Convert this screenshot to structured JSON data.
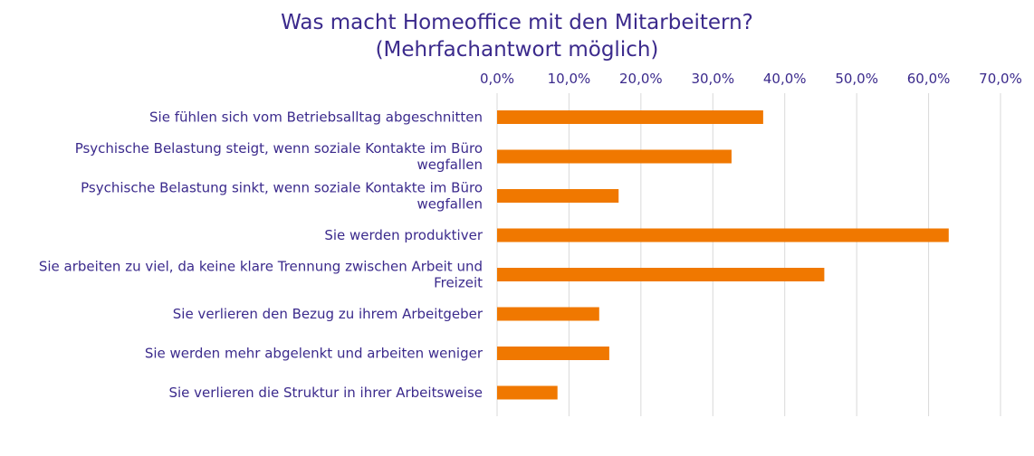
{
  "chart_data": {
    "type": "bar",
    "orientation": "horizontal",
    "title": [
      "Was macht Homeoffice mit den Mitarbeitern?",
      "(Mehrfachantwort möglich)"
    ],
    "categories": [
      [
        "Sie fühlen sich vom Betriebsalltag abgeschnitten"
      ],
      [
        "Psychische Belastung steigt, wenn soziale Kontakte im Büro",
        "wegfallen"
      ],
      [
        "Psychische Belastung sinkt, wenn soziale Kontakte im Büro",
        "wegfallen"
      ],
      [
        "Sie werden produktiver"
      ],
      [
        "Sie arbeiten zu viel, da keine klare Trennung zwischen Arbeit und",
        "Freizeit"
      ],
      [
        "Sie verlieren den Bezug zu ihrem Arbeitgeber"
      ],
      [
        "Sie werden mehr abgelenkt und arbeiten weniger"
      ],
      [
        "Sie verlieren die Struktur in ihrer Arbeitsweise"
      ]
    ],
    "values": [
      37.0,
      32.6,
      16.9,
      62.8,
      45.5,
      14.2,
      15.6,
      8.4
    ],
    "xlim": [
      0,
      70
    ],
    "x_ticks": [
      "0,0%",
      "10,0%",
      "20,0%",
      "30,0%",
      "40,0%",
      "50,0%",
      "60,0%",
      "70,0%"
    ],
    "x_axis_position": "top",
    "grid": true,
    "legend": "none",
    "colors": {
      "bar": "#f07800",
      "text": "#3b2a8c",
      "grid": "#d9d9d9"
    }
  }
}
